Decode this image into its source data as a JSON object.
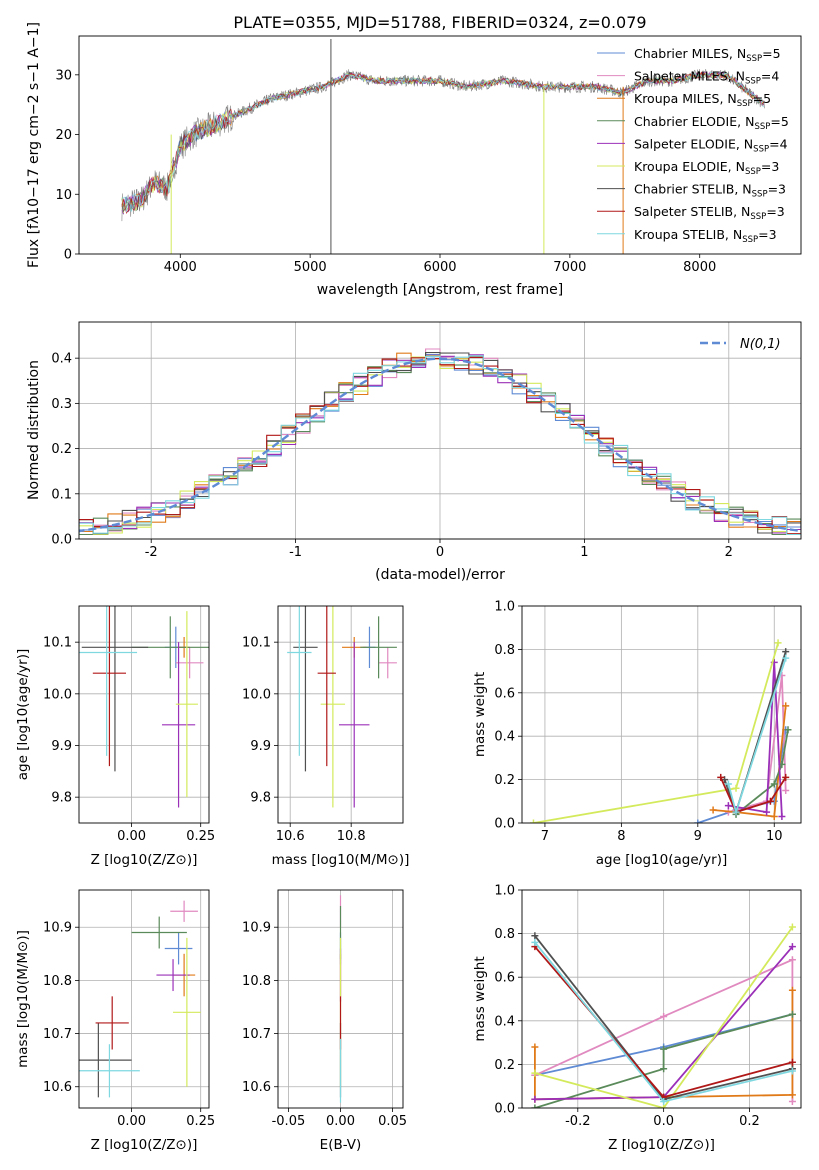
{
  "page_title": "PLATE=0355, MJD=51788, FIBERID=0324, z=0.079",
  "colors": {
    "Chabrier MILES": "#5f8bd4",
    "Salpeter MILES": "#e08ac0",
    "Kroupa MILES": "#e07a18",
    "Chabrier ELODIE": "#5a8a5a",
    "Salpeter ELODIE": "#9b30b8",
    "Kroupa ELODIE": "#d4ea5c",
    "Chabrier STELIB": "#505050",
    "Salpeter STELIB": "#b01818",
    "Kroupa STELIB": "#7fd8e0",
    "data_spectrum": "#808080",
    "normal_curve": "#5f8bd4",
    "grid": "#b0b0b0"
  },
  "chart_data": [
    {
      "id": "spectrum",
      "type": "line",
      "title": "PLATE=0355, MJD=51788, FIBERID=0324, z=0.079",
      "xlabel": "wavelength [Angstrom, rest frame]",
      "ylabel": "Flux [f",
      "ylabel_full": "Flux [fλ10−17 erg cm−2 s−1 A−1]",
      "xlim": [
        3220,
        8780
      ],
      "ylim": [
        0,
        36.5
      ],
      "xticks": [
        4000,
        5000,
        6000,
        7000,
        8000
      ],
      "yticks": [
        0,
        10,
        20,
        30
      ],
      "grid": false,
      "legend_position": "top-right",
      "legend": [
        {
          "label": "Chabrier MILES, N",
          "n": "5"
        },
        {
          "label": "Salpeter MILES, N",
          "n": "4"
        },
        {
          "label": "Kroupa MILES, N",
          "n": "5"
        },
        {
          "label": "Chabrier ELODIE, N",
          "n": "5"
        },
        {
          "label": "Salpeter ELODIE, N",
          "n": "4"
        },
        {
          "label": "Kroupa ELODIE, N",
          "n": "3"
        },
        {
          "label": "Chabrier STELIB, N",
          "n": "3"
        },
        {
          "label": "Salpeter STELIB, N",
          "n": "3"
        },
        {
          "label": "Kroupa STELIB, N",
          "n": "3"
        }
      ],
      "legend_subscript": "SSP",
      "approx_continuum": [
        [
          3550,
          8
        ],
        [
          3700,
          9
        ],
        [
          3800,
          12
        ],
        [
          3900,
          11
        ],
        [
          4000,
          18
        ],
        [
          4100,
          20
        ],
        [
          4300,
          22
        ],
        [
          4500,
          24
        ],
        [
          4700,
          26
        ],
        [
          4900,
          27
        ],
        [
          5100,
          28
        ],
        [
          5300,
          30
        ],
        [
          5500,
          29
        ],
        [
          5800,
          29
        ],
        [
          6000,
          29
        ],
        [
          6200,
          28
        ],
        [
          6500,
          29
        ],
        [
          6800,
          28
        ],
        [
          7000,
          28
        ],
        [
          7200,
          28
        ],
        [
          7400,
          27
        ],
        [
          7600,
          29
        ],
        [
          7800,
          29
        ],
        [
          8000,
          30
        ],
        [
          8200,
          30
        ],
        [
          8500,
          25
        ]
      ]
    },
    {
      "id": "residuals",
      "type": "line",
      "xlabel": "(data-model)/error",
      "ylabel": "Normed distribution",
      "xlim": [
        -2.5,
        2.5
      ],
      "ylim": [
        0,
        0.48
      ],
      "xticks": [
        -2,
        -1,
        0,
        1,
        2
      ],
      "yticks": [
        0.0,
        0.1,
        0.2,
        0.3,
        0.4
      ],
      "grid": true,
      "legend_position": "top-right",
      "legend": [
        "N(0,1)"
      ],
      "bin_width": 0.1,
      "approx_shape": "each model: step histogram following a unit normal density"
    },
    {
      "id": "age_vs_Z",
      "type": "scatter",
      "xlabel": "Z [log10(Z/Z⊙)]",
      "ylabel": "age [log10(age/yr)]",
      "xlim": [
        -0.19,
        0.28
      ],
      "ylim": [
        9.75,
        10.17
      ],
      "xticks": [
        -0.0,
        0.25
      ],
      "xtick_labels": [
        "0.00",
        "0.25"
      ],
      "yticks": [
        9.8,
        9.9,
        10.0,
        10.1
      ],
      "grid": true,
      "points": [
        {
          "model": "Chabrier MILES",
          "x": 0.16,
          "y": 10.09,
          "xerr": 0.04,
          "yerr": 0.04
        },
        {
          "model": "Salpeter MILES",
          "x": 0.21,
          "y": 10.06,
          "xerr": 0.05,
          "yerr": 0.03
        },
        {
          "model": "Kroupa MILES",
          "x": 0.19,
          "y": 10.09,
          "xerr": 0.02,
          "yerr": 0.02
        },
        {
          "model": "Chabrier ELODIE",
          "x": 0.14,
          "y": 10.09,
          "xerr": 0.14,
          "yerr": 0.06
        },
        {
          "model": "Salpeter ELODIE",
          "x": 0.17,
          "y": 9.94,
          "xerr": 0.06,
          "yerr": 0.16
        },
        {
          "model": "Kroupa ELODIE",
          "x": 0.2,
          "y": 9.98,
          "xerr": 0.04,
          "yerr": 0.18
        },
        {
          "model": "Chabrier STELIB",
          "x": -0.06,
          "y": 10.09,
          "xerr": 0.12,
          "yerr": 0.24
        },
        {
          "model": "Salpeter STELIB",
          "x": -0.08,
          "y": 10.04,
          "xerr": 0.06,
          "yerr": 0.18
        },
        {
          "model": "Kroupa STELIB",
          "x": -0.09,
          "y": 10.08,
          "xerr": 0.11,
          "yerr": 0.2
        }
      ]
    },
    {
      "id": "age_vs_mass",
      "type": "scatter",
      "xlabel": "mass [log10(M/M⊙)]",
      "ylabel": "",
      "xlim": [
        10.56,
        10.97
      ],
      "ylim": [
        9.75,
        10.17
      ],
      "xticks": [
        10.6,
        10.8
      ],
      "yticks": [
        9.8,
        9.9,
        10.0,
        10.1
      ],
      "grid": true,
      "points": [
        {
          "model": "Chabrier MILES",
          "x": 10.86,
          "y": 10.09,
          "xerr": 0.02,
          "yerr": 0.04
        },
        {
          "model": "Salpeter MILES",
          "x": 10.92,
          "y": 10.06,
          "xerr": 0.03,
          "yerr": 0.03
        },
        {
          "model": "Kroupa MILES",
          "x": 10.81,
          "y": 10.09,
          "xerr": 0.04,
          "yerr": 0.02
        },
        {
          "model": "Chabrier ELODIE",
          "x": 10.89,
          "y": 10.09,
          "xerr": 0.06,
          "yerr": 0.06
        },
        {
          "model": "Salpeter ELODIE",
          "x": 10.81,
          "y": 9.94,
          "xerr": 0.05,
          "yerr": 0.16
        },
        {
          "model": "Kroupa ELODIE",
          "x": 10.74,
          "y": 9.98,
          "xerr": 0.04,
          "yerr": 0.2
        },
        {
          "model": "Chabrier STELIB",
          "x": 10.65,
          "y": 10.09,
          "xerr": 0.04,
          "yerr": 0.24
        },
        {
          "model": "Salpeter STELIB",
          "x": 10.72,
          "y": 10.04,
          "xerr": 0.03,
          "yerr": 0.18
        },
        {
          "model": "Kroupa STELIB",
          "x": 10.63,
          "y": 10.08,
          "xerr": 0.04,
          "yerr": 0.2
        }
      ]
    },
    {
      "id": "weight_vs_age",
      "type": "line",
      "xlabel": "age [log10(age/yr)]",
      "ylabel": "mass weight",
      "xlim": [
        6.7,
        10.35
      ],
      "ylim": [
        0,
        1.0
      ],
      "xticks": [
        7,
        8,
        9,
        10
      ],
      "yticks": [
        0.0,
        0.2,
        0.4,
        0.6,
        0.8,
        1.0
      ],
      "grid": true,
      "series": [
        {
          "name": "Chabrier MILES",
          "points": [
            [
              9.0,
              0.0
            ],
            [
              9.5,
              0.06
            ],
            [
              10.0,
              0.1
            ],
            [
              10.15,
              0.43
            ]
          ]
        },
        {
          "name": "Salpeter MILES",
          "points": [
            [
              9.4,
              0.05
            ],
            [
              9.9,
              0.1
            ],
            [
              10.1,
              0.68
            ],
            [
              10.15,
              0.15
            ]
          ]
        },
        {
          "name": "Kroupa MILES",
          "points": [
            [
              9.2,
              0.06
            ],
            [
              9.5,
              0.05
            ],
            [
              10.0,
              0.03
            ],
            [
              10.15,
              0.54
            ]
          ]
        },
        {
          "name": "Chabrier ELODIE",
          "points": [
            [
              9.5,
              0.04
            ],
            [
              10.0,
              0.18
            ],
            [
              10.1,
              0.27
            ],
            [
              10.18,
              0.43
            ]
          ]
        },
        {
          "name": "Salpeter ELODIE",
          "points": [
            [
              9.4,
              0.08
            ],
            [
              9.9,
              0.05
            ],
            [
              10.0,
              0.74
            ],
            [
              10.1,
              0.03
            ]
          ]
        },
        {
          "name": "Kroupa ELODIE",
          "points": [
            [
              6.85,
              0.0
            ],
            [
              9.5,
              0.16
            ],
            [
              10.05,
              0.83
            ]
          ]
        },
        {
          "name": "Chabrier STELIB",
          "points": [
            [
              9.35,
              0.2
            ],
            [
              9.5,
              0.05
            ],
            [
              10.15,
              0.79
            ]
          ]
        },
        {
          "name": "Salpeter STELIB",
          "points": [
            [
              9.3,
              0.21
            ],
            [
              9.5,
              0.05
            ],
            [
              9.95,
              0.1
            ],
            [
              10.15,
              0.21
            ]
          ]
        },
        {
          "name": "Kroupa STELIB",
          "points": [
            [
              9.4,
              0.18
            ],
            [
              9.5,
              0.05
            ],
            [
              10.15,
              0.76
            ]
          ]
        }
      ]
    },
    {
      "id": "mass_vs_Z",
      "type": "scatter",
      "xlabel": "Z [log10(Z/Z⊙)]",
      "ylabel": "mass [log10(M/M⊙)]",
      "xlim": [
        -0.19,
        0.28
      ],
      "ylim": [
        10.56,
        10.97
      ],
      "xticks": [
        -0.0,
        0.25
      ],
      "xtick_labels": [
        "0.00",
        "0.25"
      ],
      "yticks": [
        10.6,
        10.7,
        10.8,
        10.9
      ],
      "grid": true,
      "points": [
        {
          "model": "Chabrier MILES",
          "x": 0.17,
          "y": 10.86,
          "xerr": 0.05,
          "yerr": 0.03
        },
        {
          "model": "Salpeter MILES",
          "x": 0.19,
          "y": 10.93,
          "xerr": 0.05,
          "yerr": 0.02
        },
        {
          "model": "Kroupa MILES",
          "x": 0.19,
          "y": 10.81,
          "xerr": 0.04,
          "yerr": 0.04
        },
        {
          "model": "Chabrier ELODIE",
          "x": 0.1,
          "y": 10.89,
          "xerr": 0.1,
          "yerr": 0.03
        },
        {
          "model": "Salpeter ELODIE",
          "x": 0.15,
          "y": 10.81,
          "xerr": 0.06,
          "yerr": 0.03
        },
        {
          "model": "Kroupa ELODIE",
          "x": 0.2,
          "y": 10.74,
          "xerr": 0.05,
          "yerr": 0.14
        },
        {
          "model": "Chabrier STELIB",
          "x": -0.12,
          "y": 10.65,
          "xerr": 0.12,
          "yerr": 0.07
        },
        {
          "model": "Salpeter STELIB",
          "x": -0.07,
          "y": 10.72,
          "xerr": 0.06,
          "yerr": 0.05
        },
        {
          "model": "Kroupa STELIB",
          "x": -0.08,
          "y": 10.63,
          "xerr": 0.11,
          "yerr": 0.05
        }
      ]
    },
    {
      "id": "mass_vs_EBV",
      "type": "scatter",
      "xlabel": "E(B-V)",
      "ylabel": "",
      "xlim": [
        -0.06,
        0.06
      ],
      "ylim": [
        10.56,
        10.97
      ],
      "xticks": [
        -0.05,
        0.0,
        0.05
      ],
      "yticks": [
        10.6,
        10.7,
        10.8,
        10.9
      ],
      "grid": true,
      "points": [
        {
          "model": "Chabrier MILES",
          "x": 0.0,
          "y": 10.86,
          "yerr": 0.03
        },
        {
          "model": "Salpeter MILES",
          "x": 0.0,
          "y": 10.93,
          "yerr": 0.03
        },
        {
          "model": "Kroupa MILES",
          "x": 0.0,
          "y": 10.81,
          "yerr": 0.04
        },
        {
          "model": "Chabrier ELODIE",
          "x": 0.0,
          "y": 10.89,
          "yerr": 0.05
        },
        {
          "model": "Salpeter ELODIE",
          "x": 0.0,
          "y": 10.81,
          "yerr": 0.05
        },
        {
          "model": "Kroupa ELODIE",
          "x": 0.0,
          "y": 10.74,
          "yerr": 0.14
        },
        {
          "model": "Chabrier STELIB",
          "x": 0.0,
          "y": 10.65,
          "yerr": 0.07
        },
        {
          "model": "Salpeter STELIB",
          "x": 0.0,
          "y": 10.72,
          "yerr": 0.05
        },
        {
          "model": "Kroupa STELIB",
          "x": 0.0,
          "y": 10.63,
          "yerr": 0.06
        }
      ]
    },
    {
      "id": "weight_vs_Z",
      "type": "line",
      "xlabel": "Z [log10(Z/Z⊙)]",
      "ylabel": "mass weight",
      "xlim": [
        -0.33,
        0.32
      ],
      "ylim": [
        0,
        1.0
      ],
      "xticks": [
        -0.2,
        0.0,
        0.2
      ],
      "yticks": [
        0.0,
        0.2,
        0.4,
        0.6,
        0.8,
        1.0
      ],
      "grid": true,
      "series": [
        {
          "name": "Chabrier MILES",
          "points": [
            [
              -0.3,
              0.15
            ],
            [
              0.0,
              0.28
            ],
            [
              0.3,
              0.43
            ]
          ]
        },
        {
          "name": "Salpeter MILES",
          "points": [
            [
              -0.3,
              0.15
            ],
            [
              0.0,
              0.42
            ],
            [
              0.3,
              0.68
            ],
            [
              0.3,
              0.03
            ]
          ]
        },
        {
          "name": "Kroupa MILES",
          "points": [
            [
              -0.3,
              0.28
            ],
            [
              -0.3,
              0.04
            ],
            [
              0.0,
              0.05
            ],
            [
              0.3,
              0.06
            ],
            [
              0.3,
              0.54
            ]
          ]
        },
        {
          "name": "Chabrier ELODIE",
          "points": [
            [
              -0.3,
              0.0
            ],
            [
              0.0,
              0.18
            ],
            [
              0.0,
              0.27
            ],
            [
              0.3,
              0.43
            ]
          ]
        },
        {
          "name": "Salpeter ELODIE",
          "points": [
            [
              -0.3,
              0.04
            ],
            [
              0.0,
              0.05
            ],
            [
              0.3,
              0.74
            ]
          ]
        },
        {
          "name": "Kroupa ELODIE",
          "points": [
            [
              -0.3,
              0.16
            ],
            [
              0.0,
              0.0
            ],
            [
              0.3,
              0.83
            ]
          ]
        },
        {
          "name": "Chabrier STELIB",
          "points": [
            [
              -0.3,
              0.79
            ],
            [
              0.0,
              0.04
            ],
            [
              0.3,
              0.18
            ]
          ]
        },
        {
          "name": "Salpeter STELIB",
          "points": [
            [
              -0.3,
              0.74
            ],
            [
              0.0,
              0.05
            ],
            [
              0.3,
              0.21
            ]
          ]
        },
        {
          "name": "Kroupa STELIB",
          "points": [
            [
              -0.3,
              0.76
            ],
            [
              0.0,
              0.03
            ],
            [
              0.3,
              0.17
            ]
          ]
        }
      ]
    }
  ]
}
